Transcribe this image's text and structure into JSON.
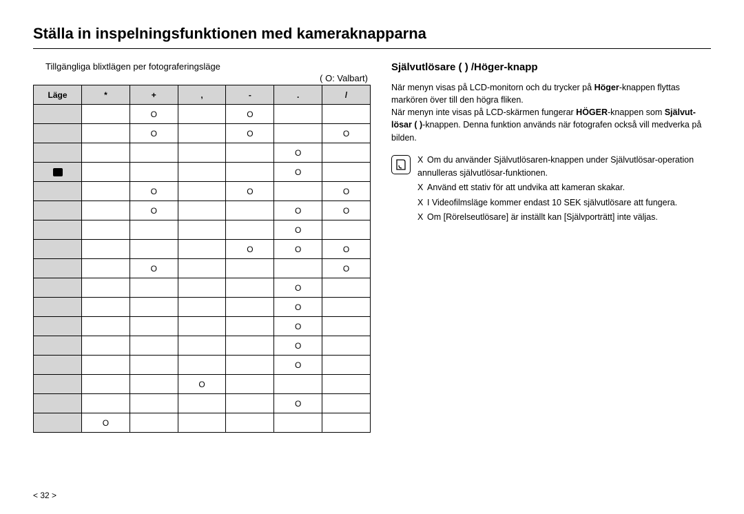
{
  "title": "Ställa in inspelningsfunktionen med kameraknapparna",
  "table": {
    "caption": "Tillgängliga blixtlägen per fotograferingsläge",
    "legend": "( O: Valbart)",
    "header": [
      "Läge",
      "*",
      "+",
      ",",
      "-",
      ".",
      "/"
    ],
    "rows": [
      {
        "mode": "",
        "cells": [
          "",
          "O",
          "",
          "O",
          "",
          ""
        ]
      },
      {
        "mode": "",
        "cells": [
          "",
          "O",
          "",
          "O",
          "",
          "O"
        ]
      },
      {
        "mode": "",
        "cells": [
          "",
          "",
          "",
          "",
          "O",
          ""
        ]
      },
      {
        "mode": "icon",
        "cells": [
          "",
          "",
          "",
          "",
          "O",
          ""
        ]
      },
      {
        "mode": "",
        "cells": [
          "",
          "O",
          "",
          "O",
          "",
          "O"
        ]
      },
      {
        "mode": "",
        "cells": [
          "",
          "O",
          "",
          "",
          "O",
          "O"
        ]
      },
      {
        "mode": "",
        "cells": [
          "",
          "",
          "",
          "",
          "O",
          ""
        ]
      },
      {
        "mode": "",
        "cells": [
          "",
          "",
          "",
          "O",
          "O",
          "O"
        ]
      },
      {
        "mode": "",
        "cells": [
          "",
          "O",
          "",
          "",
          "",
          "O"
        ]
      },
      {
        "mode": "",
        "cells": [
          "",
          "",
          "",
          "",
          "O",
          ""
        ]
      },
      {
        "mode": "",
        "cells": [
          "",
          "",
          "",
          "",
          "O",
          ""
        ]
      },
      {
        "mode": "",
        "cells": [
          "",
          "",
          "",
          "",
          "O",
          ""
        ]
      },
      {
        "mode": "",
        "cells": [
          "",
          "",
          "",
          "",
          "O",
          ""
        ]
      },
      {
        "mode": "",
        "cells": [
          "",
          "",
          "",
          "",
          "O",
          ""
        ]
      },
      {
        "mode": "",
        "cells": [
          "",
          "",
          "O",
          "",
          "",
          ""
        ]
      },
      {
        "mode": "",
        "cells": [
          "",
          "",
          "",
          "",
          "O",
          ""
        ]
      },
      {
        "mode": "",
        "cells": [
          "O",
          "",
          "",
          "",
          "",
          ""
        ]
      }
    ]
  },
  "right": {
    "heading": "Självutlösare (     ) /Höger-knapp",
    "para1_a": "När menyn visas på LCD-monitorn och du trycker på ",
    "para1_bold1": "Höger",
    "para1_b": "-knappen flyttas markören över till den högra fliken.",
    "para2_a": "När menyn inte visas på LCD-skärmen fungerar ",
    "para2_bold1": "HÖGER",
    "para2_b": "-knappen som ",
    "para2_bold2": "Självut­lösar (    )",
    "para2_c": "-knappen. Denna funktion används när fotografen också vill medverka på bilden.",
    "notes": [
      "Om du använder Självutlösaren-knappen under Självutlösar-operation annulleras självutlösar-funktionen.",
      "Använd ett stativ för att undvika att kameran skakar.",
      "I Videofilmsläge kommer endast 10 SEK självutlösare att fungera.",
      "Om [Rörelseutlösare] är inställt kan [Självporträtt] inte väljas."
    ],
    "bullet": "X"
  },
  "pageNumber": "< 32 >",
  "colors": {
    "header_bg": "#d5d5d5",
    "border": "#000000",
    "text": "#000000",
    "bg": "#ffffff"
  },
  "fonts": {
    "title_size": 22,
    "body_size": 12.5,
    "table_size": 12
  }
}
